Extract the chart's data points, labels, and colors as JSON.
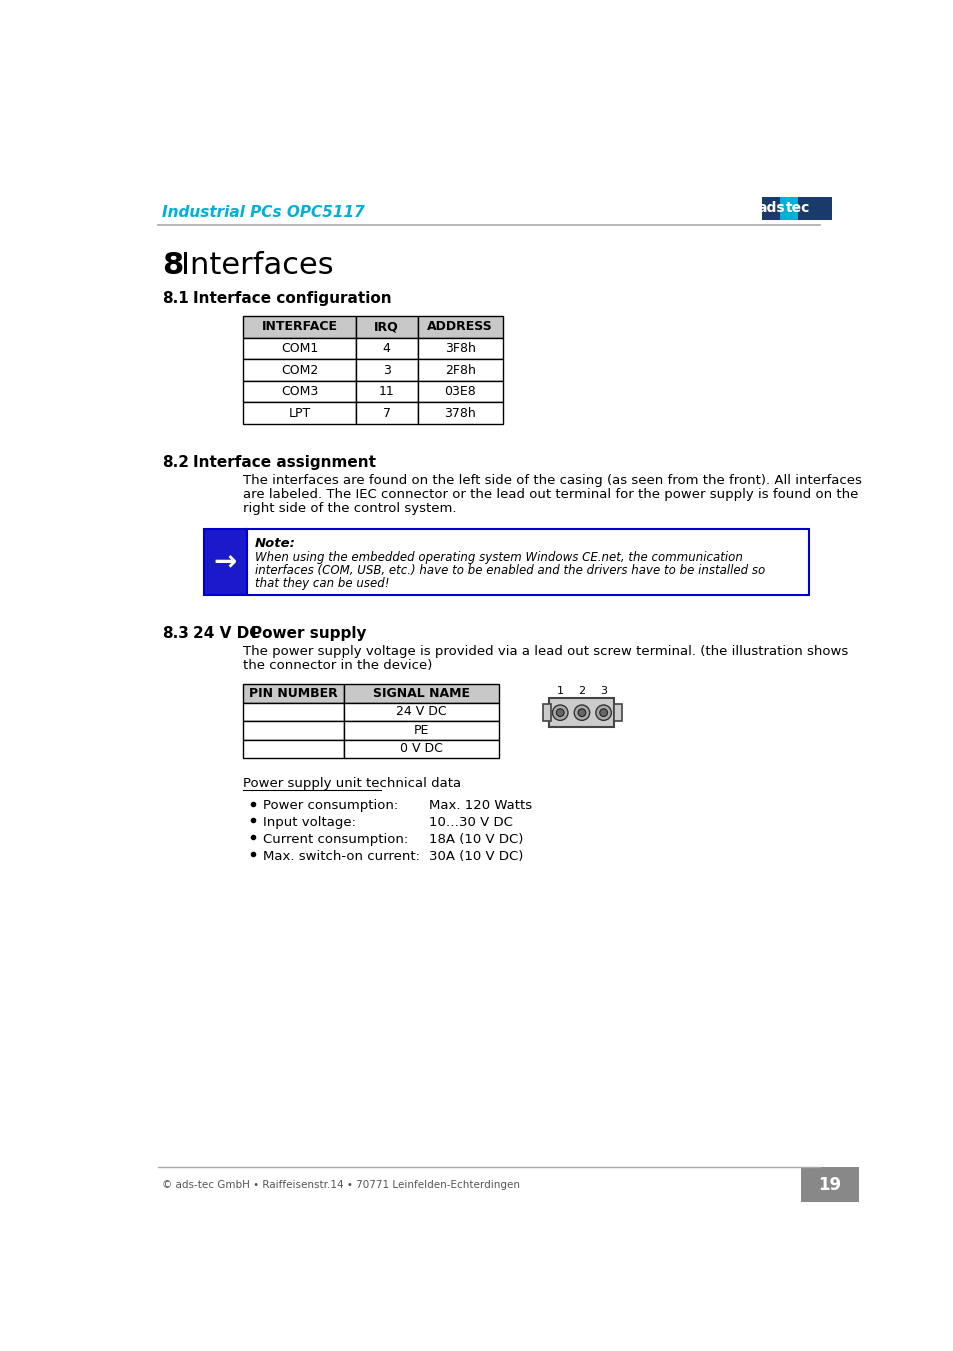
{
  "page_bg": "#ffffff",
  "header_text": "Industrial PCs OPC5117",
  "header_color": "#00b0d8",
  "header_line_color": "#aaaaaa",
  "logo_bg": "#1a3a6b",
  "logo_highlight": "#00b0d8",
  "table1_headers": [
    "INTERFACE",
    "IRQ",
    "ADDRESS"
  ],
  "table1_rows": [
    [
      "COM1",
      "4",
      "3F8h"
    ],
    [
      "COM2",
      "3",
      "2F8h"
    ],
    [
      "COM3",
      "11",
      "03E8"
    ],
    [
      "LPT",
      "7",
      "378h"
    ]
  ],
  "table1_header_bg": "#c8c8c8",
  "table1_border": "#000000",
  "note_box_border": "#0000cc",
  "note_arrow_bg": "#1a1acc",
  "note_title": "Note:",
  "note_text": "When using the embedded operating system Windows CE.net, the communication\ninterfaces (COM, USB, etc.) have to be enabled and the drivers have to be installed so\nthat they can be used!",
  "section82_body": "The interfaces are found on the left side of the casing (as seen from the front). All interfaces\nare labeled. The IEC connector or the lead out terminal for the power supply is found on the\nright side of the control system.",
  "section83_body": "The power supply voltage is provided via a lead out screw terminal. (the illustration shows\nthe connector in the device)",
  "table2_headers": [
    "PIN NUMBER",
    "SIGNAL NAME"
  ],
  "table2_rows": [
    [
      "",
      "24 V DC"
    ],
    [
      "",
      "PE"
    ],
    [
      "",
      "0 V DC"
    ]
  ],
  "table2_border": "#000000",
  "power_specs_title": "Power supply unit technical data",
  "power_specs": [
    [
      "Power consumption:",
      "Max. 120 Watts"
    ],
    [
      "Input voltage:",
      "10…30 V DC"
    ],
    [
      "Current consumption:",
      "18A (10 V DC)"
    ],
    [
      "Max. switch-on current:",
      "30A (10 V DC)"
    ]
  ],
  "footer_text": "© ads-tec GmbH • Raiffeisenstr.14 • 70771 Leinfelden-Echterdingen",
  "footer_page": "19",
  "footer_bg": "#888888",
  "footer_text_color": "#555555",
  "footer_page_color": "#ffffff"
}
